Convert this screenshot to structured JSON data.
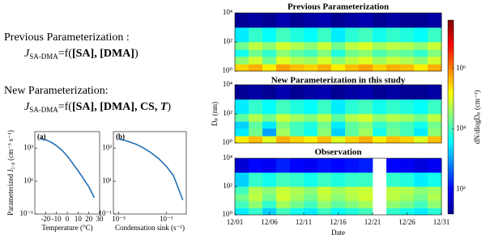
{
  "text": {
    "previous_heading": "Previous Parameterization :",
    "previous_formula": {
      "symbol": "J",
      "subscript": "SA-DMA",
      "eq": "=f(",
      "args": "[SA], [DMA]",
      "close": ")"
    },
    "new_heading": "New Parameterization:",
    "new_formula": {
      "symbol": "J",
      "subscript": "SA-DMA",
      "eq": "=f(",
      "args": "[SA], [DMA], CS, ",
      "t": "T",
      "close": ")"
    }
  },
  "chart_data": [
    {
      "type": "heatmap",
      "title": "Previous Parameterization",
      "colormap": "jet",
      "clim": [
        15,
        40000000
      ],
      "cticks": [
        {
          "value": 100,
          "label": "10²"
        },
        {
          "value": 10000,
          "label": "10⁴"
        },
        {
          "value": 1000000,
          "label": "10⁶"
        }
      ],
      "clabel": "dN/dlogDₚ (cm⁻³)",
      "ylim": [
        1,
        10000
      ],
      "yticks": [
        {
          "value": 1,
          "label": "10⁰"
        },
        {
          "value": 100,
          "label": "10²"
        },
        {
          "value": 10000,
          "label": "10⁴"
        }
      ],
      "log_y": true,
      "xlim": [
        0,
        30
      ],
      "x_edges": [
        0,
        2,
        4,
        6,
        8,
        10,
        12,
        14,
        16,
        18,
        20,
        22,
        24,
        26,
        28,
        30
      ],
      "y_edges": [
        1,
        3,
        10,
        30,
        100,
        1000,
        10000
      ],
      "z": [
        [
          300000,
          500000,
          200000,
          600000,
          400000,
          300000,
          500000,
          200000,
          400000,
          600000,
          300000,
          500000,
          400000,
          200000,
          500000
        ],
        [
          30000,
          80000,
          20000,
          100000,
          50000,
          40000,
          90000,
          30000,
          60000,
          100000,
          40000,
          70000,
          50000,
          30000,
          80000
        ],
        [
          5000,
          20000,
          8000,
          30000,
          15000,
          10000,
          25000,
          6000,
          20000,
          30000,
          12000,
          20000,
          15000,
          8000,
          25000
        ],
        [
          20000,
          60000,
          30000,
          80000,
          50000,
          30000,
          70000,
          20000,
          60000,
          90000,
          40000,
          60000,
          50000,
          30000,
          70000
        ],
        [
          3000,
          8000,
          4000,
          10000,
          6000,
          4000,
          9000,
          3000,
          7000,
          10000,
          5000,
          8000,
          6000,
          4000,
          9000
        ],
        [
          20,
          25,
          20,
          30,
          20,
          25,
          30,
          20,
          25,
          30,
          20,
          25,
          20,
          20,
          25
        ]
      ]
    },
    {
      "type": "heatmap",
      "title": "New Parameterization in this study",
      "ylabel": "Dₚ (nm)",
      "ylim": [
        1,
        10000
      ],
      "yticks": [
        {
          "value": 1,
          "label": "10⁰"
        },
        {
          "value": 100,
          "label": "10²"
        },
        {
          "value": 10000,
          "label": "10⁴"
        }
      ],
      "log_y": true,
      "xlim": [
        0,
        30
      ],
      "x_edges": [
        0,
        2,
        4,
        6,
        8,
        10,
        12,
        14,
        16,
        18,
        20,
        22,
        24,
        26,
        28,
        30
      ],
      "y_edges": [
        1,
        3,
        10,
        30,
        100,
        1000,
        10000
      ],
      "z": [
        [
          200000,
          400000,
          100000,
          500000,
          300000,
          200000,
          400000,
          100000,
          300000,
          500000,
          200000,
          400000,
          300000,
          100000,
          400000
        ],
        [
          3000,
          20000,
          1000,
          40000,
          10000,
          5000,
          30000,
          2000,
          15000,
          40000,
          5000,
          20000,
          10000,
          3000,
          30000
        ],
        [
          2000,
          15000,
          3000,
          25000,
          10000,
          6000,
          20000,
          3000,
          15000,
          25000,
          8000,
          15000,
          10000,
          5000,
          20000
        ],
        [
          15000,
          50000,
          20000,
          70000,
          40000,
          25000,
          60000,
          15000,
          50000,
          80000,
          30000,
          50000,
          40000,
          20000,
          60000
        ],
        [
          3000,
          8000,
          4000,
          10000,
          6000,
          4000,
          9000,
          3000,
          7000,
          10000,
          5000,
          8000,
          6000,
          4000,
          9000
        ],
        [
          20,
          25,
          20,
          30,
          20,
          25,
          30,
          20,
          25,
          30,
          20,
          25,
          20,
          20,
          25
        ]
      ]
    },
    {
      "type": "heatmap",
      "title": "Observation",
      "xlabel": "Date",
      "ylim": [
        1,
        10000
      ],
      "yticks": [
        {
          "value": 1,
          "label": "10⁰"
        },
        {
          "value": 100,
          "label": "10²"
        },
        {
          "value": 10000,
          "label": "10⁴"
        }
      ],
      "log_y": true,
      "xlim": [
        0,
        30
      ],
      "xticks": [
        {
          "value": 0,
          "label": "12/01"
        },
        {
          "value": 5,
          "label": "12/06"
        },
        {
          "value": 10,
          "label": "12/11"
        },
        {
          "value": 15,
          "label": "12/16"
        },
        {
          "value": 20,
          "label": "12/21"
        },
        {
          "value": 25,
          "label": "12/26"
        },
        {
          "value": 30,
          "label": "12/31"
        }
      ],
      "x_edges": [
        0,
        2,
        4,
        6,
        8,
        10,
        12,
        14,
        16,
        18,
        20,
        22,
        24,
        26,
        28,
        30
      ],
      "y_edges": [
        1,
        3,
        10,
        30,
        100,
        1000,
        10000
      ],
      "z": [
        [
          3000,
          8000,
          2000,
          10000,
          5000,
          3000,
          9000,
          4000,
          6000,
          10000,
          null,
          8000,
          5000,
          3000,
          7000
        ],
        [
          10000,
          30000,
          8000,
          40000,
          20000,
          10000,
          30000,
          15000,
          25000,
          40000,
          null,
          30000,
          20000,
          10000,
          30000
        ],
        [
          20000,
          60000,
          20000,
          80000,
          40000,
          20000,
          60000,
          30000,
          50000,
          80000,
          null,
          60000,
          40000,
          20000,
          50000
        ],
        [
          10000,
          50000,
          30000,
          70000,
          50000,
          30000,
          70000,
          40000,
          60000,
          70000,
          null,
          60000,
          50000,
          30000,
          40000
        ],
        [
          2000,
          8000,
          5000,
          10000,
          8000,
          5000,
          9000,
          6000,
          8000,
          9000,
          null,
          8000,
          6000,
          3000,
          5000
        ],
        [
          50,
          100,
          80,
          150,
          100,
          80,
          120,
          100,
          120,
          150,
          null,
          100,
          80,
          60,
          80
        ]
      ]
    },
    {
      "type": "line",
      "label": "(a)",
      "ylabel": "Parameterized J₁.₄ (cm⁻³ s⁻¹)",
      "xlabel": "Temperature (°C)",
      "color": "#1f6fb4",
      "xlim": [
        -30,
        30
      ],
      "xticks": [
        -20,
        -10,
        0,
        10,
        20,
        30
      ],
      "ylim": [
        0.1,
        10000
      ],
      "log_y": true,
      "yticks": [
        {
          "value": 0.1,
          "label": "10⁻¹"
        },
        {
          "value": 10,
          "label": "10¹"
        },
        {
          "value": 1000,
          "label": "10³"
        }
      ],
      "x": [
        -25,
        -20,
        -15,
        -10,
        -5,
        0,
        5,
        10,
        15,
        20,
        25
      ],
      "values": [
        3600,
        3200,
        2300,
        1400,
        750,
        330,
        120,
        42,
        14,
        4.5,
        1
      ]
    },
    {
      "type": "line",
      "label": "(b)",
      "xlabel": "Condensation sink (s⁻¹)",
      "color": "#1f6fb4",
      "xlim": [
        0.0006,
        0.7
      ],
      "log_x": true,
      "xticks": [
        {
          "value": 0.001,
          "label": "10⁻³"
        },
        {
          "value": 0.1,
          "label": "10⁻¹"
        }
      ],
      "ylim": [
        0.1,
        10000
      ],
      "log_y": true,
      "yticks": [
        {
          "value": 0.1,
          "label": "10⁻¹"
        },
        {
          "value": 10,
          "label": "10¹"
        },
        {
          "value": 1000,
          "label": "10³"
        }
      ],
      "x": [
        0.001,
        0.002,
        0.005,
        0.01,
        0.02,
        0.05,
        0.1,
        0.2,
        0.5
      ],
      "values": [
        3600,
        2800,
        1800,
        1100,
        600,
        220,
        80,
        22,
        0.7
      ]
    }
  ]
}
